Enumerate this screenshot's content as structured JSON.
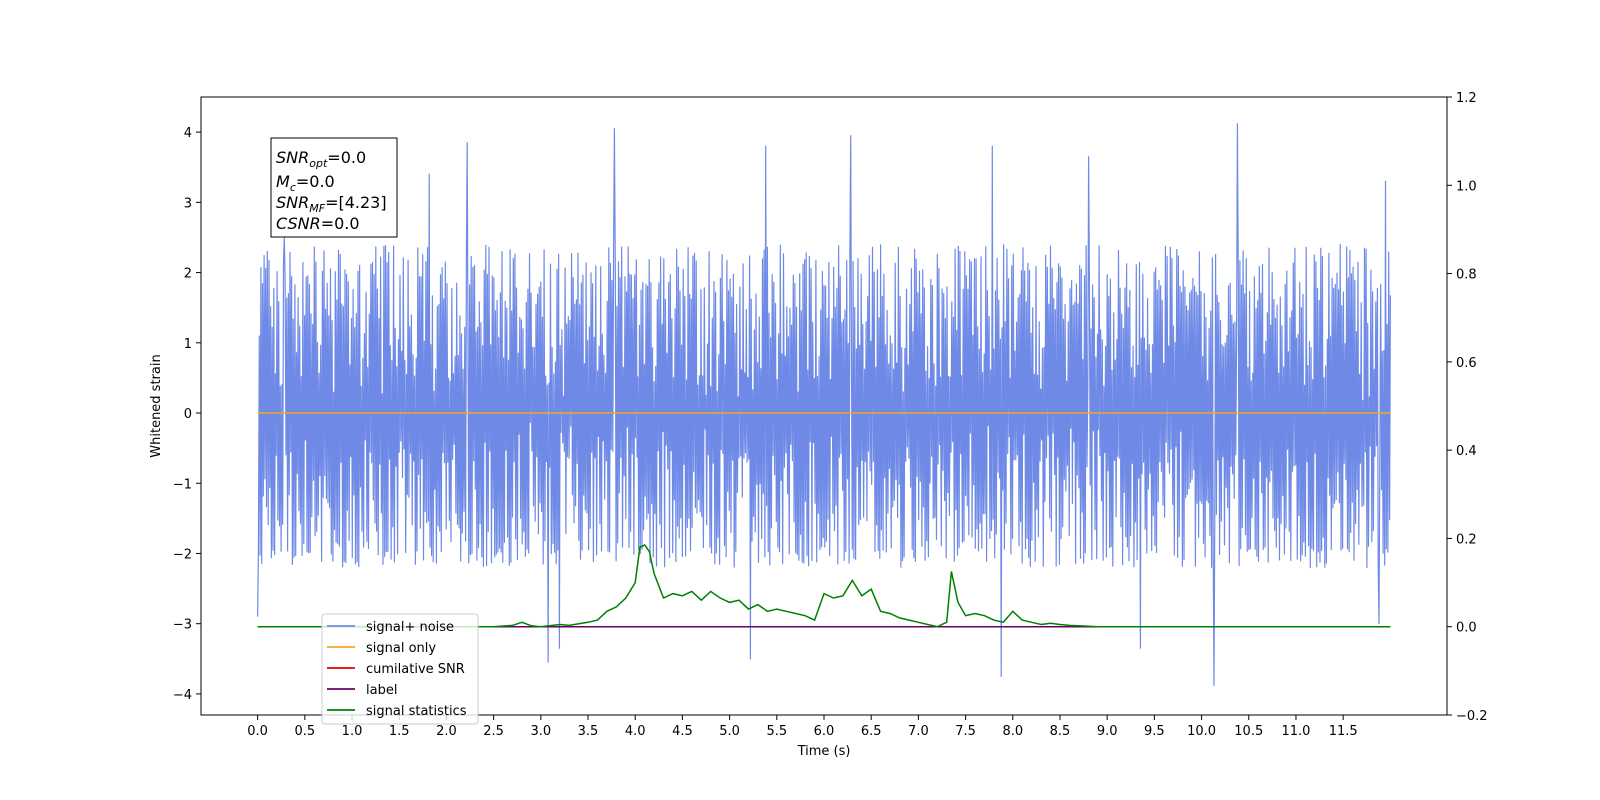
{
  "chart_data": {
    "type": "line",
    "xlabel": "Time (s)",
    "ylabel": "Whitened strain",
    "xlim": [
      -0.6,
      12.6
    ],
    "ylim": [
      -4.3,
      4.5
    ],
    "y2lim": [
      -0.2,
      1.2
    ],
    "x_ticks": [
      0.0,
      0.5,
      1.0,
      1.5,
      2.0,
      2.5,
      3.0,
      3.5,
      4.0,
      4.5,
      5.0,
      5.5,
      6.0,
      6.5,
      7.0,
      7.5,
      8.0,
      8.5,
      9.0,
      9.5,
      10.0,
      10.5,
      11.0,
      11.5
    ],
    "x_tick_labels": [
      "0.0",
      "0.5",
      "1.0",
      "1.5",
      "2.0",
      "2.5",
      "3.0",
      "3.5",
      "4.0",
      "4.5",
      "5.0",
      "5.5",
      "6.0",
      "6.5",
      "7.0",
      "7.5",
      "8.0",
      "8.5",
      "9.0",
      "9.5",
      "10.0",
      "10.5",
      "11.0",
      "11.5"
    ],
    "y_ticks": [
      -4,
      -3,
      -2,
      -1,
      0,
      1,
      2,
      3,
      4
    ],
    "y_tick_labels": [
      "−4",
      "−3",
      "−2",
      "−1",
      "0",
      "1",
      "2",
      "3",
      "4"
    ],
    "y2_ticks": [
      -0.2,
      0.0,
      0.2,
      0.4,
      0.6,
      0.8,
      1.0,
      1.2
    ],
    "y2_tick_labels": [
      "−0.2",
      "0.0",
      "0.2",
      "0.4",
      "0.6",
      "0.8",
      "1.0",
      "1.2"
    ],
    "series": [
      {
        "name": "signal+ noise",
        "color": "#6e8ae6",
        "axis": "left",
        "x_range": [
          0.0,
          12.0
        ],
        "samples": 1400,
        "envelope_upper": 2.5,
        "envelope_lower": -2.2,
        "spikes": [
          {
            "x": 0.28,
            "y": 2.5
          },
          {
            "x": 1.82,
            "y": 3.4
          },
          {
            "x": 2.22,
            "y": 3.85
          },
          {
            "x": 3.78,
            "y": 4.05
          },
          {
            "x": 5.38,
            "y": 3.8
          },
          {
            "x": 6.28,
            "y": 3.95
          },
          {
            "x": 7.78,
            "y": 3.8
          },
          {
            "x": 8.8,
            "y": 3.65
          },
          {
            "x": 10.38,
            "y": 4.12
          },
          {
            "x": 11.95,
            "y": 3.3
          },
          {
            "x": 3.08,
            "y": -3.55
          },
          {
            "x": 3.2,
            "y": -3.35
          },
          {
            "x": 5.22,
            "y": -3.5
          },
          {
            "x": 7.88,
            "y": -3.75
          },
          {
            "x": 9.35,
            "y": -3.35
          },
          {
            "x": 10.13,
            "y": -3.88
          },
          {
            "x": 0.0,
            "y": -2.9
          },
          {
            "x": 11.88,
            "y": -3.0
          }
        ]
      },
      {
        "name": "signal only",
        "color": "#f5a623",
        "axis": "left",
        "x": [
          0.0,
          12.0
        ],
        "y": [
          0.0,
          0.0
        ]
      },
      {
        "name": "cumilative SNR",
        "color": "#e00000",
        "axis": "right",
        "x": [
          0.0,
          12.0
        ],
        "y": [
          0.0,
          0.0
        ]
      },
      {
        "name": "label",
        "color": "#6a006a",
        "axis": "right",
        "x": [
          0.0,
          12.0
        ],
        "y": [
          0.0,
          0.0
        ]
      },
      {
        "name": "signal statistics",
        "color": "#008000",
        "axis": "right",
        "x": [
          0.0,
          2.5,
          2.7,
          2.8,
          2.9,
          3.0,
          3.2,
          3.3,
          3.5,
          3.6,
          3.7,
          3.8,
          3.9,
          4.0,
          4.05,
          4.1,
          4.15,
          4.2,
          4.3,
          4.4,
          4.5,
          4.6,
          4.7,
          4.8,
          4.9,
          5.0,
          5.1,
          5.2,
          5.3,
          5.4,
          5.5,
          5.6,
          5.7,
          5.8,
          5.9,
          6.0,
          6.1,
          6.2,
          6.3,
          6.4,
          6.5,
          6.6,
          6.7,
          6.8,
          6.9,
          7.0,
          7.1,
          7.2,
          7.3,
          7.35,
          7.42,
          7.5,
          7.6,
          7.7,
          7.8,
          7.9,
          8.0,
          8.1,
          8.2,
          8.3,
          8.4,
          8.5,
          8.6,
          8.7,
          8.8,
          8.9,
          9.0,
          9.2,
          9.5,
          12.0
        ],
        "y": [
          0.0,
          0.0,
          0.003,
          0.01,
          0.002,
          0.0,
          0.005,
          0.003,
          0.01,
          0.015,
          0.035,
          0.045,
          0.065,
          0.1,
          0.18,
          0.185,
          0.17,
          0.12,
          0.065,
          0.075,
          0.07,
          0.08,
          0.06,
          0.08,
          0.065,
          0.055,
          0.06,
          0.04,
          0.05,
          0.035,
          0.04,
          0.035,
          0.03,
          0.025,
          0.015,
          0.075,
          0.065,
          0.07,
          0.105,
          0.07,
          0.085,
          0.035,
          0.03,
          0.02,
          0.015,
          0.01,
          0.005,
          0.0,
          0.01,
          0.125,
          0.055,
          0.025,
          0.03,
          0.025,
          0.015,
          0.01,
          0.035,
          0.015,
          0.01,
          0.005,
          0.008,
          0.005,
          0.003,
          0.002,
          0.001,
          0.0,
          0.0,
          0.0,
          0.0,
          0.0
        ]
      }
    ],
    "legend": {
      "position": "lower-left",
      "entries": [
        {
          "label": "signal+ noise",
          "color": "#6e8ae6"
        },
        {
          "label": "signal only",
          "color": "#f5a623"
        },
        {
          "label": "cumilative SNR",
          "color": "#e00000"
        },
        {
          "label": "label",
          "color": "#6a006a"
        },
        {
          "label": "signal statistics",
          "color": "#008000"
        }
      ]
    },
    "annotation": {
      "lines": [
        {
          "main": "SNR",
          "sub": "opt",
          "rest": "=0.0"
        },
        {
          "main": "M",
          "sub": "c",
          "rest": "=0.0"
        },
        {
          "main": "SNR",
          "sub": "MF",
          "rest": "=[4.23]"
        },
        {
          "main": "CSNR",
          "sub": "",
          "rest": "=0.0"
        }
      ]
    }
  }
}
